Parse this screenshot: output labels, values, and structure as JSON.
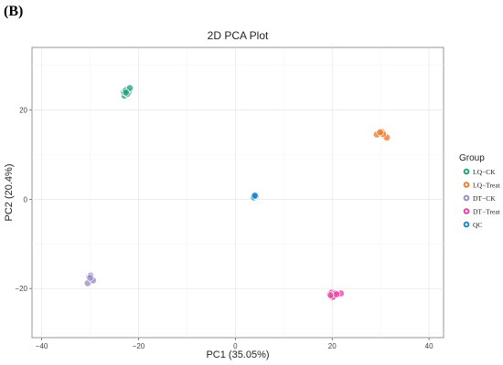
{
  "panel_label": "(B)",
  "chart_data": {
    "type": "scatter",
    "title": "2D PCA Plot",
    "xlabel": "PC1 (35.05%)",
    "ylabel": "PC2 (20.4%)",
    "xlim": [
      -42,
      43
    ],
    "ylim": [
      -31,
      34
    ],
    "xticks": [
      -40,
      -20,
      0,
      20,
      40
    ],
    "yticks": [
      -20,
      0,
      20
    ],
    "xtick_labels": [
      "−40",
      "−20",
      "0",
      "20",
      "40"
    ],
    "ytick_labels": [
      "−20",
      "0",
      "20"
    ],
    "grid": true,
    "legend": {
      "title": "Group",
      "position": "right"
    },
    "series": [
      {
        "name": "LQ−CK",
        "color": "#1fa27e",
        "points": [
          [
            -22.9,
            23.2
          ],
          [
            -22.5,
            24.6
          ],
          [
            -22.0,
            24.1
          ],
          [
            -23.0,
            24.0
          ],
          [
            -22.3,
            23.6
          ],
          [
            -22.7,
            24.3
          ],
          [
            -21.8,
            24.9
          ],
          [
            -22.6,
            23.9
          ]
        ]
      },
      {
        "name": "LQ−Treat",
        "color": "#ee7a2b",
        "points": [
          [
            29.7,
            14.6
          ],
          [
            30.3,
            15.1
          ],
          [
            30.8,
            14.2
          ],
          [
            30.0,
            14.8
          ],
          [
            29.2,
            14.5
          ],
          [
            31.3,
            13.8
          ],
          [
            30.5,
            14.6
          ],
          [
            29.9,
            15.0
          ]
        ]
      },
      {
        "name": "DT−CK",
        "color": "#9a89c6",
        "points": [
          [
            -30.2,
            -17.3
          ],
          [
            -29.7,
            -17.8
          ],
          [
            -30.5,
            -18.8
          ],
          [
            -29.9,
            -17.1
          ],
          [
            -29.4,
            -18.2
          ],
          [
            -30.0,
            -17.6
          ]
        ]
      },
      {
        "name": "DT−Treat",
        "color": "#e93ea0",
        "points": [
          [
            19.5,
            -21.3
          ],
          [
            20.3,
            -21.7
          ],
          [
            19.9,
            -20.9
          ],
          [
            20.6,
            -21.1
          ],
          [
            21.8,
            -21.1
          ],
          [
            20.1,
            -21.9
          ],
          [
            19.7,
            -21.5
          ],
          [
            20.9,
            -21.3
          ]
        ]
      },
      {
        "name": "QC",
        "color": "#1e86c8",
        "points": [
          [
            3.9,
            0.6
          ],
          [
            4.1,
            0.9
          ],
          [
            3.8,
            0.4
          ],
          [
            4.2,
            0.7
          ],
          [
            4.0,
            0.8
          ]
        ]
      }
    ]
  }
}
